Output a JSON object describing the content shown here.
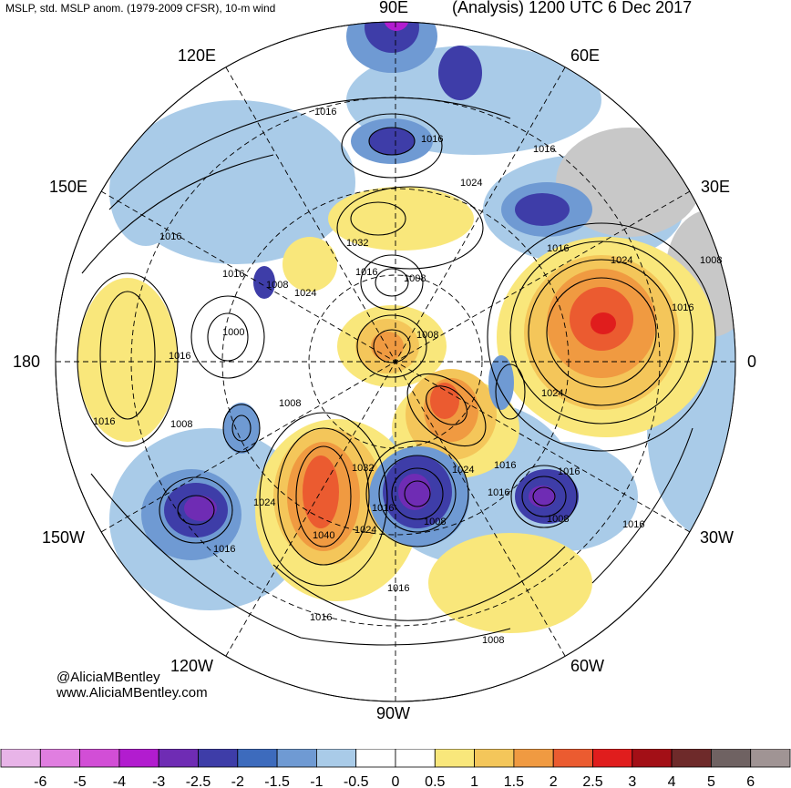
{
  "header": {
    "title_left": "MSLP, std. MSLP anom. (1979-2009 CFSR), 10-m wind",
    "title_right": "(Analysis) 1200 UTC 6 Dec 2017"
  },
  "longitudes": {
    "top": "90E",
    "bottom": "90W",
    "left": "180",
    "right": "0",
    "upper_left": "120E",
    "upper_right": "60E",
    "left_upper": "150E",
    "right_upper": "30E",
    "left_lower": "150W",
    "right_lower": "30W",
    "lower_left": "120W",
    "lower_right": "60W"
  },
  "isobar_labels": [
    "1016",
    "1016",
    "1016",
    "1024",
    "1032",
    "1016",
    "1008",
    "1024",
    "1016",
    "1016",
    "1008",
    "1016",
    "1008",
    "1016",
    "1000",
    "1016",
    "1008",
    "1016",
    "1008",
    "1008",
    "1024",
    "1024",
    "1016",
    "1016",
    "1032",
    "1024",
    "1016",
    "1016",
    "1040",
    "1024",
    "1016",
    "1008",
    "1024",
    "1008",
    "1016",
    "1016",
    "1016",
    "1008"
  ],
  "credits": {
    "handle": "@AliciaMBentley",
    "website": "www.AliciaMBentley.com"
  },
  "colorbar": {
    "ticks": [
      "-6",
      "-5",
      "-4",
      "-3",
      "-2.5",
      "-2",
      "-1.5",
      "-1",
      "-0.5",
      "0",
      "0.5",
      "1",
      "1.5",
      "2",
      "2.5",
      "3",
      "4",
      "5",
      "6"
    ],
    "colors": [
      "#e8b4e8",
      "#e07ee0",
      "#d24ed6",
      "#b21ccf",
      "#6f2cb4",
      "#3e3da8",
      "#3d6bbd",
      "#6f9ad3",
      "#a9cbe8",
      "#ffffff",
      "#ffffff",
      "#f9e77b",
      "#f4c65a",
      "#f09a41",
      "#eb5b30",
      "#e01d1d",
      "#a30f16",
      "#6e2a2a",
      "#6f6262",
      "#a09494"
    ]
  },
  "anomaly_regions": [
    {
      "name": "north-atlantic-high",
      "value": 2.5
    },
    {
      "name": "europe-high",
      "value": 2.0
    },
    {
      "name": "pacific-low",
      "value": -2.5
    },
    {
      "name": "canada-low",
      "value": -3.0
    },
    {
      "name": "greenland-low",
      "value": -2.5
    },
    {
      "name": "western-us-high",
      "value": 2.5
    },
    {
      "name": "arctic-high",
      "value": 2.0
    },
    {
      "name": "north-pacific-high",
      "value": 1.5
    }
  ]
}
